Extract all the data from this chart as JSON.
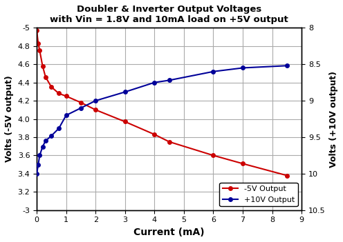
{
  "title_line1": "Doubler & Inverter Output Voltages",
  "title_line2": "with Vin = 1.8V and 10mA load on +5V output",
  "xlabel": "Current (mA)",
  "ylabel_left": "Volts (-5V output)",
  "ylabel_right": "Volts (+10V output)",
  "xlim": [
    0,
    9
  ],
  "ylim_left": [
    -5.0,
    -3.0
  ],
  "ylim_right": [
    8.0,
    10.5
  ],
  "red_x": [
    0.0,
    0.05,
    0.1,
    0.2,
    0.3,
    0.5,
    0.75,
    1.0,
    1.5,
    2.0,
    3.0,
    4.0,
    4.5,
    6.0,
    7.0,
    8.5
  ],
  "red_y": [
    -4.97,
    -4.83,
    -4.75,
    -4.58,
    -4.46,
    -4.35,
    -4.28,
    -4.25,
    -4.18,
    -4.1,
    -3.97,
    -3.83,
    -3.75,
    -3.6,
    -3.51,
    -3.38
  ],
  "blue_x": [
    0.0,
    0.05,
    0.1,
    0.2,
    0.3,
    0.5,
    0.75,
    1.0,
    1.5,
    2.0,
    3.0,
    4.0,
    4.5,
    6.0,
    7.0,
    8.5
  ],
  "blue_actual": [
    10.0,
    9.88,
    9.75,
    9.63,
    9.55,
    9.48,
    9.38,
    9.2,
    9.1,
    9.0,
    8.88,
    8.75,
    8.72,
    8.6,
    8.55,
    8.52
  ],
  "red_color": "#cc0000",
  "blue_color": "#000099",
  "bg_color": "#ffffff",
  "grid_color": "#aaaaaa",
  "legend_labels": [
    "-5V Output",
    "+10V Output"
  ],
  "xticks": [
    0,
    1,
    2,
    3,
    4,
    5,
    6,
    7,
    8,
    9
  ],
  "yticks_left": [
    -5.0,
    -4.8,
    -4.6,
    -4.4,
    -4.2,
    -4.0,
    -3.8,
    -3.6,
    -3.4,
    -3.2,
    -3.0
  ],
  "yticks_right": [
    8.0,
    8.5,
    9.0,
    9.5,
    10.0,
    10.5
  ]
}
